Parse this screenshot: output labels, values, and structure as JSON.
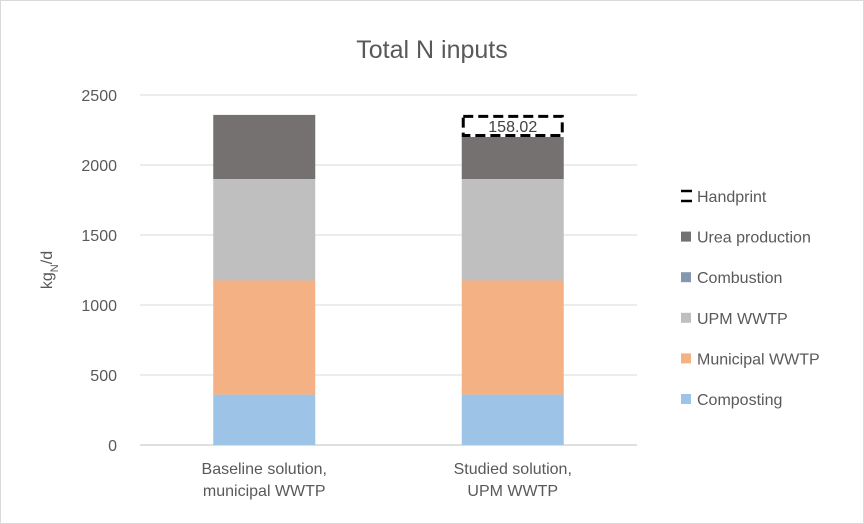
{
  "chart_data": {
    "type": "bar",
    "stacked": true,
    "title": "Total N inputs",
    "ylabel_main": "kg",
    "ylabel_sub": "N",
    "ylabel_tail": "/d",
    "ylim": [
      0,
      2500
    ],
    "yticks": [
      0,
      500,
      1000,
      1500,
      2000,
      2500
    ],
    "grid": true,
    "legend_position": "right",
    "categories": [
      [
        "Baseline solution,",
        "municipal WWTP"
      ],
      [
        "Studied solution,",
        "UPM WWTP"
      ]
    ],
    "series": [
      {
        "name": "Composting",
        "color": "#9dc3e6",
        "values": [
          360,
          360
        ]
      },
      {
        "name": "Municipal WWTP",
        "color": "#f4b183",
        "values": [
          815,
          815
        ]
      },
      {
        "name": "UPM WWTP",
        "color": "#bfbfbf",
        "values": [
          725,
          725
        ]
      },
      {
        "name": "Combustion",
        "color": "#8497b0",
        "values": [
          0,
          0
        ]
      },
      {
        "name": "Urea production",
        "color": "#767171",
        "values": [
          458,
          300
        ]
      }
    ],
    "handprint": {
      "name": "Handprint",
      "category_index": 1,
      "value": 158.02,
      "label": "158.02",
      "base": 2200
    }
  }
}
